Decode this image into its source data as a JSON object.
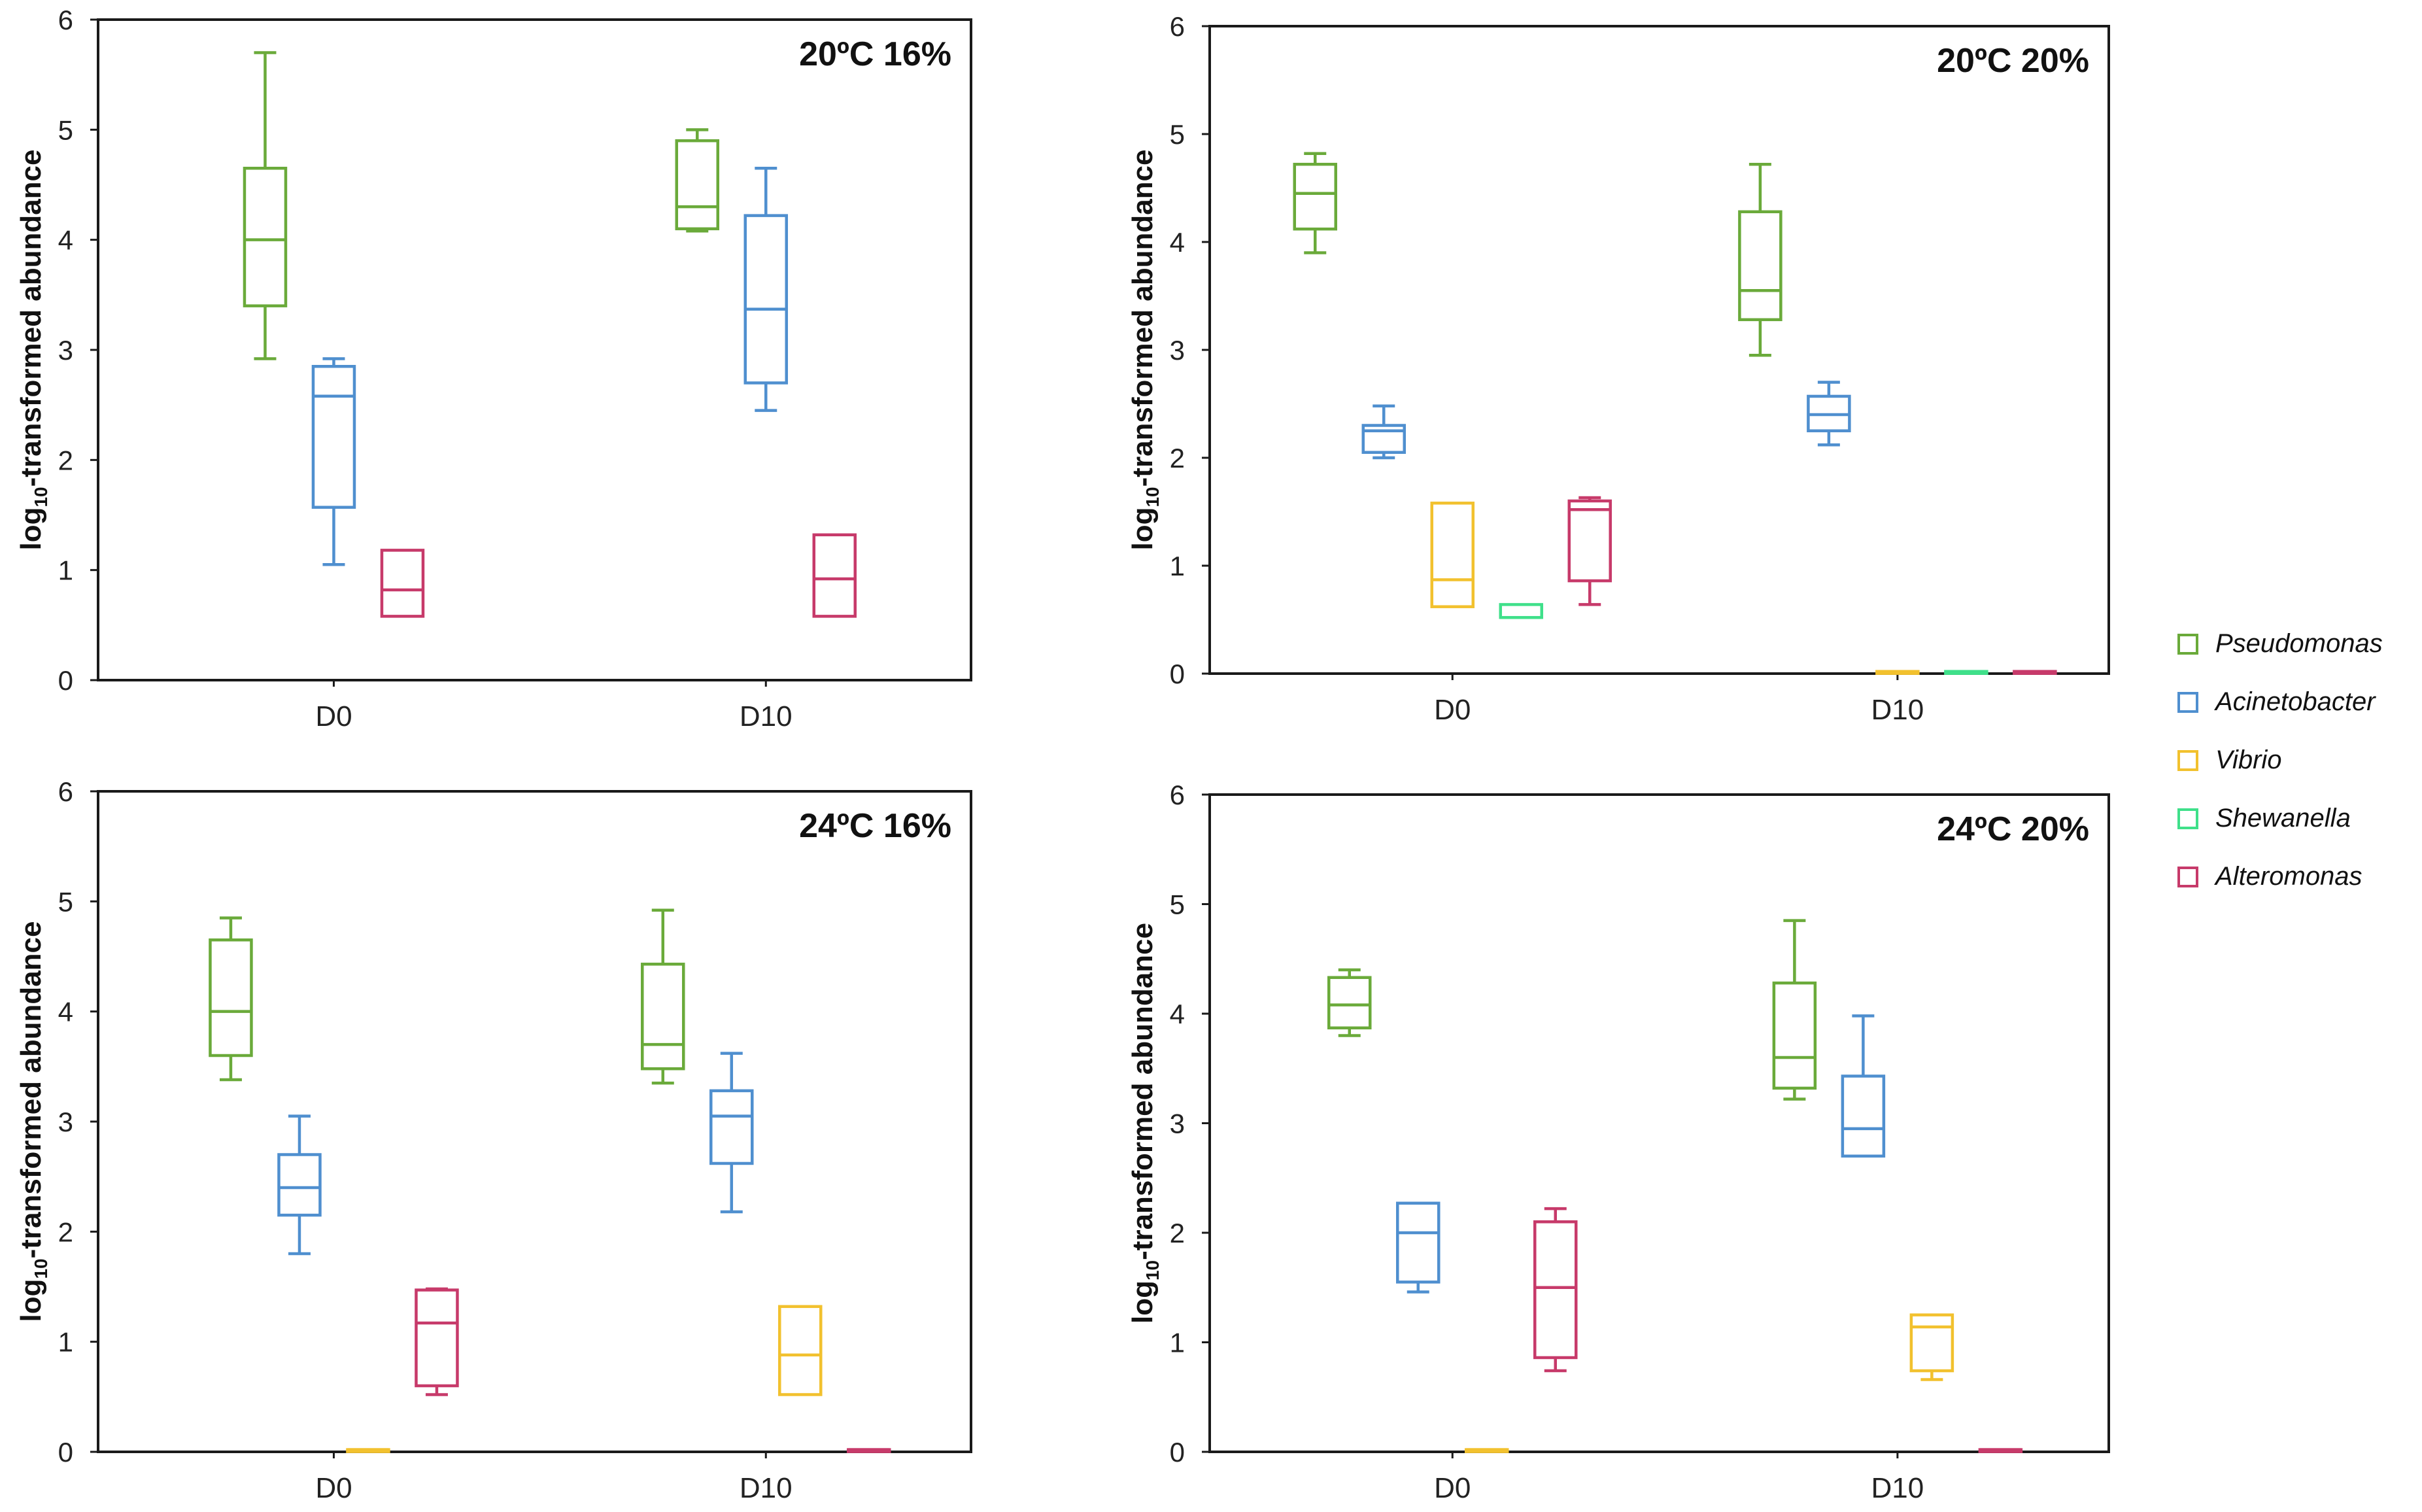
{
  "colors": {
    "Pseudomonas": "#6aaa3a",
    "Acinetobacter": "#4f8fcf",
    "Vibrio": "#f2c12e",
    "Shewanella": "#3fe08a",
    "Alteromonas": "#c73a6a"
  },
  "legend": {
    "items": [
      {
        "label": "Pseudomonas",
        "color": "#6aaa3a"
      },
      {
        "label": "Acinetobacter",
        "color": "#4f8fcf"
      },
      {
        "label": "Vibrio",
        "color": "#f2c12e"
      },
      {
        "label": "Shewanella",
        "color": "#3fe08a"
      },
      {
        "label": "Alteromonas",
        "color": "#c73a6a"
      }
    ]
  },
  "chart_data": [
    {
      "type": "box",
      "title": "20ºC 16%",
      "ylabel_base": "log",
      "ylabel_sub": "10",
      "ylabel_rest": "-transformed abundance",
      "categories": [
        "D0",
        "D10"
      ],
      "ylim": [
        0,
        6
      ],
      "yticks": [
        "0",
        "1",
        "2",
        "3",
        "4",
        "5",
        "6"
      ],
      "groups": [
        {
          "category": "D0",
          "boxes": [
            {
              "genus": "Pseudomonas",
              "min": 2.92,
              "q1": 3.4,
              "median": 4.0,
              "q3": 4.65,
              "max": 5.7
            },
            {
              "genus": "Acinetobacter",
              "min": 1.05,
              "q1": 1.57,
              "median": 2.58,
              "q3": 2.85,
              "max": 2.92
            },
            {
              "genus": "Alteromonas",
              "min": 0.58,
              "q1": 0.58,
              "median": 0.82,
              "q3": 1.18,
              "max": 1.18
            }
          ]
        },
        {
          "category": "D10",
          "boxes": [
            {
              "genus": "Pseudomonas",
              "min": 4.08,
              "q1": 4.1,
              "median": 4.3,
              "q3": 4.9,
              "max": 5.0
            },
            {
              "genus": "Acinetobacter",
              "min": 2.45,
              "q1": 2.7,
              "median": 3.37,
              "q3": 4.22,
              "max": 4.65
            },
            {
              "genus": "Alteromonas",
              "min": 0.58,
              "q1": 0.58,
              "median": 0.92,
              "q3": 1.32,
              "max": 1.32
            }
          ]
        }
      ]
    },
    {
      "type": "box",
      "title": "20ºC 20%",
      "ylabel_base": "log",
      "ylabel_sub": "10",
      "ylabel_rest": "-transformed abundance",
      "categories": [
        "D0",
        "D10"
      ],
      "ylim": [
        0,
        6
      ],
      "yticks": [
        "0",
        "1",
        "2",
        "3",
        "4",
        "5",
        "6"
      ],
      "groups": [
        {
          "category": "D0",
          "boxes": [
            {
              "genus": "Pseudomonas",
              "min": 3.9,
              "q1": 4.12,
              "median": 4.45,
              "q3": 4.72,
              "max": 4.82
            },
            {
              "genus": "Acinetobacter",
              "min": 2.0,
              "q1": 2.05,
              "median": 2.25,
              "q3": 2.3,
              "max": 2.48
            },
            {
              "genus": "Vibrio",
              "min": 0.62,
              "q1": 0.62,
              "median": 0.87,
              "q3": 1.58,
              "max": 1.58
            },
            {
              "genus": "Shewanella",
              "min": 0.52,
              "q1": 0.52,
              "median": 0.52,
              "q3": 0.64,
              "max": 0.64
            },
            {
              "genus": "Alteromonas",
              "min": 0.64,
              "q1": 0.86,
              "median": 1.52,
              "q3": 1.6,
              "max": 1.63
            }
          ]
        },
        {
          "category": "D10",
          "boxes": [
            {
              "genus": "Pseudomonas",
              "min": 2.95,
              "q1": 3.28,
              "median": 3.55,
              "q3": 4.28,
              "max": 4.72
            },
            {
              "genus": "Acinetobacter",
              "min": 2.12,
              "q1": 2.25,
              "median": 2.4,
              "q3": 2.57,
              "max": 2.7
            },
            {
              "genus": "Vibrio",
              "min": 0.02,
              "q1": 0.02,
              "median": 0.02,
              "q3": 0.02,
              "max": 0.02
            },
            {
              "genus": "Shewanella",
              "min": 0.02,
              "q1": 0.02,
              "median": 0.02,
              "q3": 0.02,
              "max": 0.02
            },
            {
              "genus": "Alteromonas",
              "min": 0.02,
              "q1": 0.02,
              "median": 0.02,
              "q3": 0.02,
              "max": 0.02
            }
          ]
        }
      ]
    },
    {
      "type": "box",
      "title": "24ºC 16%",
      "ylabel_base": "log",
      "ylabel_sub": "10",
      "ylabel_rest": "-transformed abundance",
      "categories": [
        "D0",
        "D10"
      ],
      "ylim": [
        0,
        6
      ],
      "yticks": [
        "0",
        "1",
        "2",
        "3",
        "4",
        "5",
        "6"
      ],
      "groups": [
        {
          "category": "D0",
          "boxes": [
            {
              "genus": "Pseudomonas",
              "min": 3.38,
              "q1": 3.6,
              "median": 4.0,
              "q3": 4.65,
              "max": 4.85
            },
            {
              "genus": "Acinetobacter",
              "min": 1.8,
              "q1": 2.15,
              "median": 2.4,
              "q3": 2.7,
              "max": 3.05
            },
            {
              "genus": "Vibrio",
              "min": 0.02,
              "q1": 0.02,
              "median": 0.02,
              "q3": 0.02,
              "max": 0.02
            },
            {
              "genus": "Alteromonas",
              "min": 0.52,
              "q1": 0.6,
              "median": 1.17,
              "q3": 1.47,
              "max": 1.48
            }
          ]
        },
        {
          "category": "D10",
          "boxes": [
            {
              "genus": "Pseudomonas",
              "min": 3.35,
              "q1": 3.48,
              "median": 3.7,
              "q3": 4.43,
              "max": 4.92
            },
            {
              "genus": "Acinetobacter",
              "min": 2.18,
              "q1": 2.62,
              "median": 3.05,
              "q3": 3.28,
              "max": 3.62
            },
            {
              "genus": "Vibrio",
              "min": 0.52,
              "q1": 0.52,
              "median": 0.88,
              "q3": 1.32,
              "max": 1.32
            },
            {
              "genus": "Alteromonas",
              "min": 0.02,
              "q1": 0.02,
              "median": 0.02,
              "q3": 0.02,
              "max": 0.02
            }
          ]
        }
      ]
    },
    {
      "type": "box",
      "title": "24ºC 20%",
      "ylabel_base": "log",
      "ylabel_sub": "10",
      "ylabel_rest": "-transformed abundance",
      "categories": [
        "D0",
        "D10"
      ],
      "ylim": [
        0,
        6
      ],
      "yticks": [
        "0",
        "1",
        "2",
        "3",
        "4",
        "5",
        "6"
      ],
      "groups": [
        {
          "category": "D0",
          "boxes": [
            {
              "genus": "Pseudomonas",
              "min": 3.8,
              "q1": 3.87,
              "median": 4.08,
              "q3": 4.33,
              "max": 4.4
            },
            {
              "genus": "Acinetobacter",
              "min": 1.46,
              "q1": 1.55,
              "median": 2.0,
              "q3": 2.27,
              "max": 2.27
            },
            {
              "genus": "Vibrio",
              "min": 0.02,
              "q1": 0.02,
              "median": 0.02,
              "q3": 0.02,
              "max": 0.02
            },
            {
              "genus": "Alteromonas",
              "min": 0.74,
              "q1": 0.86,
              "median": 1.5,
              "q3": 2.1,
              "max": 2.22
            }
          ]
        },
        {
          "category": "D10",
          "boxes": [
            {
              "genus": "Pseudomonas",
              "min": 3.22,
              "q1": 3.32,
              "median": 3.6,
              "q3": 4.28,
              "max": 4.85
            },
            {
              "genus": "Acinetobacter",
              "min": 2.7,
              "q1": 2.7,
              "median": 2.95,
              "q3": 3.43,
              "max": 3.98
            },
            {
              "genus": "Vibrio",
              "min": 0.66,
              "q1": 0.74,
              "median": 1.14,
              "q3": 1.25,
              "max": 1.25
            },
            {
              "genus": "Alteromonas",
              "min": 0.02,
              "q1": 0.02,
              "median": 0.02,
              "q3": 0.02,
              "max": 0.02
            }
          ]
        }
      ]
    }
  ]
}
